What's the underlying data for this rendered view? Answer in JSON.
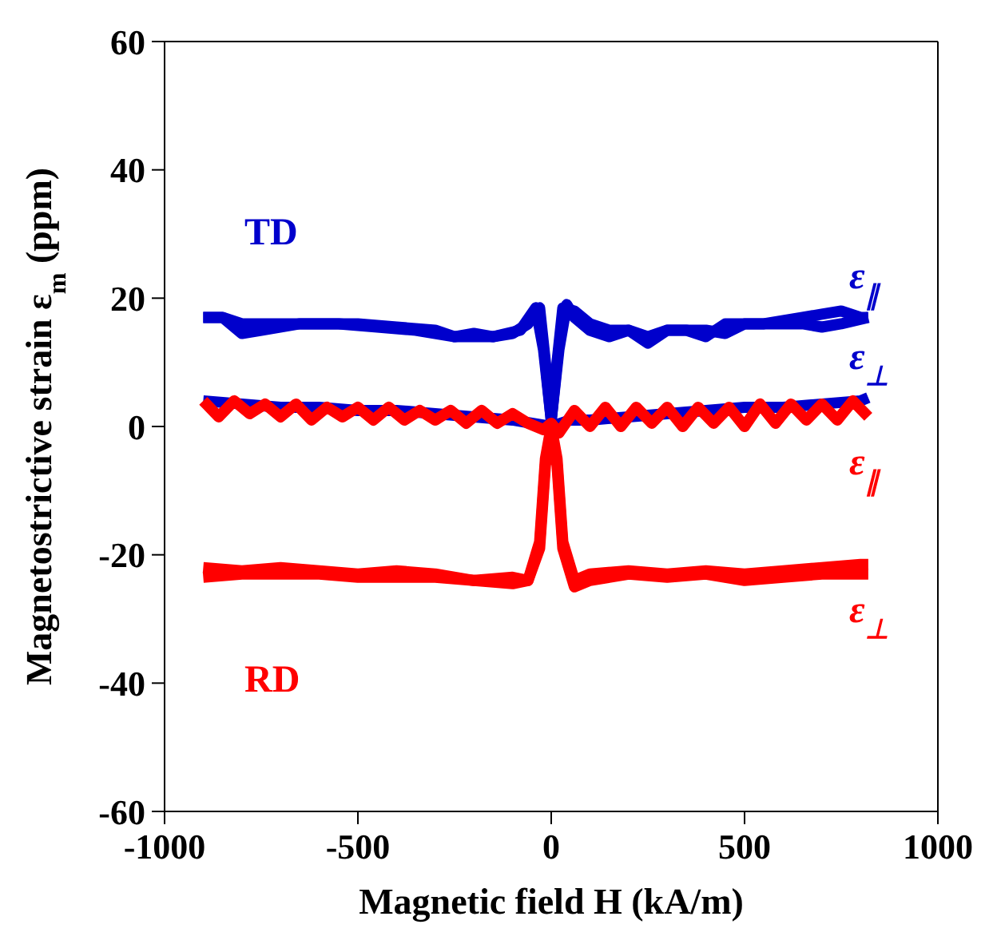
{
  "chart_data": {
    "type": "line",
    "xlabel": "Magnetic field H (kA/m)",
    "ylabel": "Magnetostrictive strain ε$_{m}$ (ppm)",
    "xlim": [
      -1000,
      1000
    ],
    "xticks": [
      -1000,
      -500,
      0,
      500,
      1000
    ],
    "ylim": [
      -60,
      60
    ],
    "yticks": [
      -60,
      -40,
      -20,
      0,
      20,
      40,
      60
    ],
    "grid": false,
    "legend": false,
    "marker": "none",
    "line_style": "solid",
    "annotations": [
      "TD",
      "RD"
    ],
    "series": [
      {
        "name": "ε$_{∥}$",
        "color": "#0000cc",
        "x": [
          -900,
          -850,
          -800,
          -750,
          -700,
          -600,
          -500,
          -400,
          -300,
          -250,
          -200,
          -150,
          -100,
          -60,
          -30,
          -15,
          0,
          15,
          30,
          60,
          100,
          150,
          200,
          250,
          300,
          350,
          400,
          450,
          500,
          550,
          600,
          650,
          700,
          750,
          800,
          820
        ],
        "values": [
          17,
          17,
          16,
          16,
          16,
          16,
          16,
          15.5,
          15,
          14,
          14.5,
          14,
          14.5,
          16,
          18.5,
          10,
          1,
          10,
          18.5,
          18,
          16,
          15,
          15,
          14,
          15,
          15,
          15,
          14.5,
          16,
          16,
          16.5,
          17,
          17.5,
          18,
          17,
          17
        ]
      },
      {
        "color": "#0000cc",
        "x": [
          -900,
          -850,
          -800,
          -750,
          -650,
          -550,
          -450,
          -350,
          -250,
          -150,
          -80,
          -40,
          -20,
          0,
          20,
          40,
          60,
          100,
          150,
          200,
          250,
          300,
          350,
          400,
          450,
          500,
          600,
          650,
          700,
          750,
          820
        ],
        "values": [
          17,
          17,
          14.5,
          15,
          16,
          16,
          15.5,
          15,
          14,
          14,
          15,
          18.5,
          12,
          1,
          12,
          19,
          17,
          15,
          14,
          15,
          13,
          15,
          15,
          14,
          16,
          16,
          16,
          16,
          15.5,
          16,
          17
        ]
      },
      {
        "name": "ε$_{⊥}$",
        "color": "#0000cc",
        "x": [
          -900,
          -800,
          -700,
          -600,
          -500,
          -400,
          -300,
          -200,
          -100,
          -50,
          0,
          50,
          100,
          200,
          300,
          400,
          500,
          600,
          700,
          800,
          820
        ],
        "values": [
          4,
          3.5,
          3,
          3,
          2.5,
          2.5,
          2,
          1.5,
          1,
          0.5,
          0,
          1,
          1,
          1.5,
          2,
          2.5,
          3,
          3,
          3.5,
          4,
          4.5
        ]
      },
      {
        "name": "ε$_{∥}$",
        "color": "#ff0000",
        "x": [
          -900,
          -860,
          -820,
          -780,
          -740,
          -700,
          -660,
          -620,
          -580,
          -540,
          -500,
          -460,
          -420,
          -380,
          -340,
          -300,
          -260,
          -220,
          -180,
          -140,
          -100,
          -60,
          -20,
          0,
          20,
          60,
          100,
          140,
          180,
          220,
          260,
          300,
          340,
          380,
          420,
          460,
          500,
          540,
          580,
          620,
          660,
          700,
          740,
          780,
          820
        ],
        "values": [
          4,
          1.5,
          4,
          2,
          3.5,
          1.5,
          3.5,
          1,
          3,
          1.5,
          3,
          1,
          3,
          1,
          2.5,
          1,
          2.5,
          0.5,
          2.5,
          0.5,
          2,
          0.5,
          -0.5,
          0.5,
          -1,
          2.5,
          0,
          3,
          0,
          3,
          0.5,
          3,
          0,
          3,
          0.5,
          3,
          0,
          3.5,
          0.5,
          3.5,
          1,
          3.5,
          1,
          4,
          1.5
        ]
      },
      {
        "name": "ε$_{⊥}$",
        "color": "#ff0000",
        "x": [
          -900,
          -800,
          -700,
          -600,
          -500,
          -400,
          -300,
          -200,
          -100,
          -60,
          -30,
          -15,
          0,
          15,
          30,
          60,
          100,
          200,
          300,
          400,
          500,
          600,
          700,
          800,
          820
        ],
        "values": [
          -22,
          -22.5,
          -22,
          -22.5,
          -23,
          -22.5,
          -23,
          -24,
          -23.5,
          -24,
          -18,
          -5,
          0,
          -5,
          -18,
          -24,
          -23,
          -22.5,
          -23,
          -22.5,
          -23,
          -22.5,
          -22,
          -21.5,
          -21.5
        ]
      },
      {
        "color": "#ff0000",
        "x": [
          -900,
          -800,
          -700,
          -600,
          -500,
          -400,
          -300,
          -200,
          -100,
          -60,
          -30,
          -15,
          0,
          15,
          30,
          60,
          100,
          200,
          300,
          400,
          500,
          600,
          700,
          800,
          820
        ],
        "values": [
          -23.5,
          -23,
          -23,
          -23,
          -23.5,
          -23.5,
          -23.5,
          -24,
          -24.5,
          -24,
          -19,
          -6,
          -1,
          -6,
          -19,
          -25,
          -24,
          -23,
          -23.5,
          -23,
          -24,
          -23.5,
          -23,
          -23,
          -23
        ]
      }
    ]
  }
}
